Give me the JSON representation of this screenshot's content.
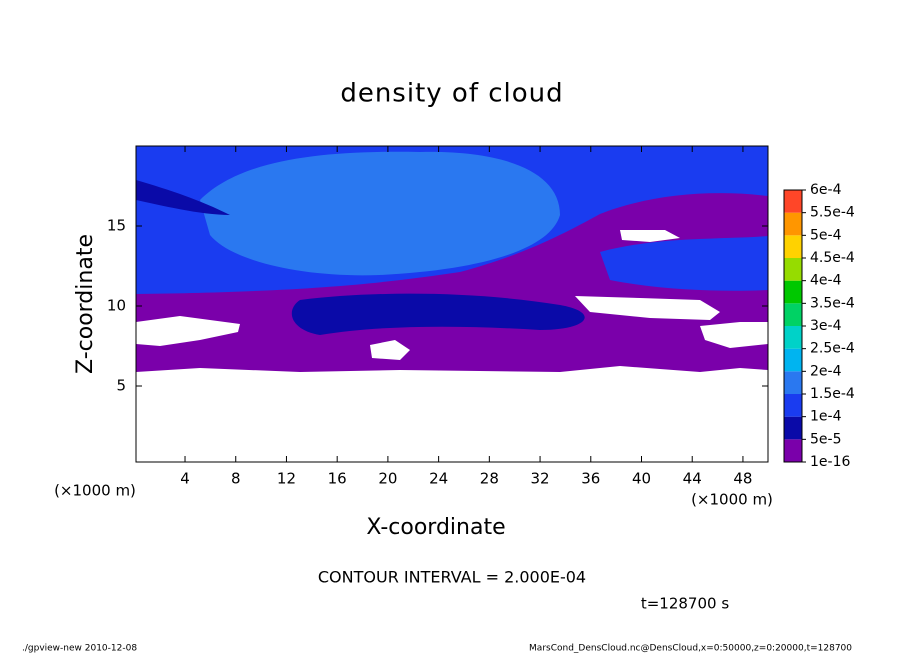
{
  "chart_data": {
    "type": "contour",
    "title": "density of cloud",
    "xlabel": "X-coordinate",
    "ylabel": "Z-coordinate",
    "x_unit": "(×1000 m)",
    "y_unit": "(×1000 m)",
    "xlim": [
      0,
      50
    ],
    "xticks": [
      4,
      8,
      12,
      16,
      20,
      24,
      28,
      32,
      36,
      40,
      44,
      48
    ],
    "ylim": [
      0,
      20
    ],
    "yticks": [
      5,
      10,
      15
    ],
    "levels": [
      {
        "value": 1e-16,
        "label": "1e-16"
      },
      {
        "value": 5e-05,
        "label": "5e-5"
      },
      {
        "value": 0.0001,
        "label": "1e-4"
      },
      {
        "value": 0.00015,
        "label": "1.5e-4"
      },
      {
        "value": 0.0002,
        "label": "2e-4"
      },
      {
        "value": 0.00025,
        "label": "2.5e-4"
      },
      {
        "value": 0.0003,
        "label": "3e-4"
      },
      {
        "value": 0.00035,
        "label": "3.5e-4"
      },
      {
        "value": 0.0004,
        "label": "4e-4"
      },
      {
        "value": 0.00045,
        "label": "4.5e-4"
      },
      {
        "value": 0.0005,
        "label": "5e-4"
      },
      {
        "value": 0.00055,
        "label": "5.5e-4"
      },
      {
        "value": 0.0006,
        "label": "6e-4"
      }
    ],
    "level_colors": [
      "#7a00aa",
      "#0a0aa8",
      "#1a3cf0",
      "#2a78f0",
      "#00b4f0",
      "#00d2c8",
      "#00d264",
      "#00c800",
      "#96dc00",
      "#ffd200",
      "#ff9600",
      "#ff4628",
      "#ff8c8c"
    ],
    "annotations": [
      "CONTOUR INTERVAL = 2.000E-04",
      "t=128700 s"
    ],
    "footer": [
      "./gpview-new  2010-12-08",
      "MarsCond_DensCloud.nc@DensCloud,x=0:50000,z=0:20000,t=128700"
    ]
  }
}
